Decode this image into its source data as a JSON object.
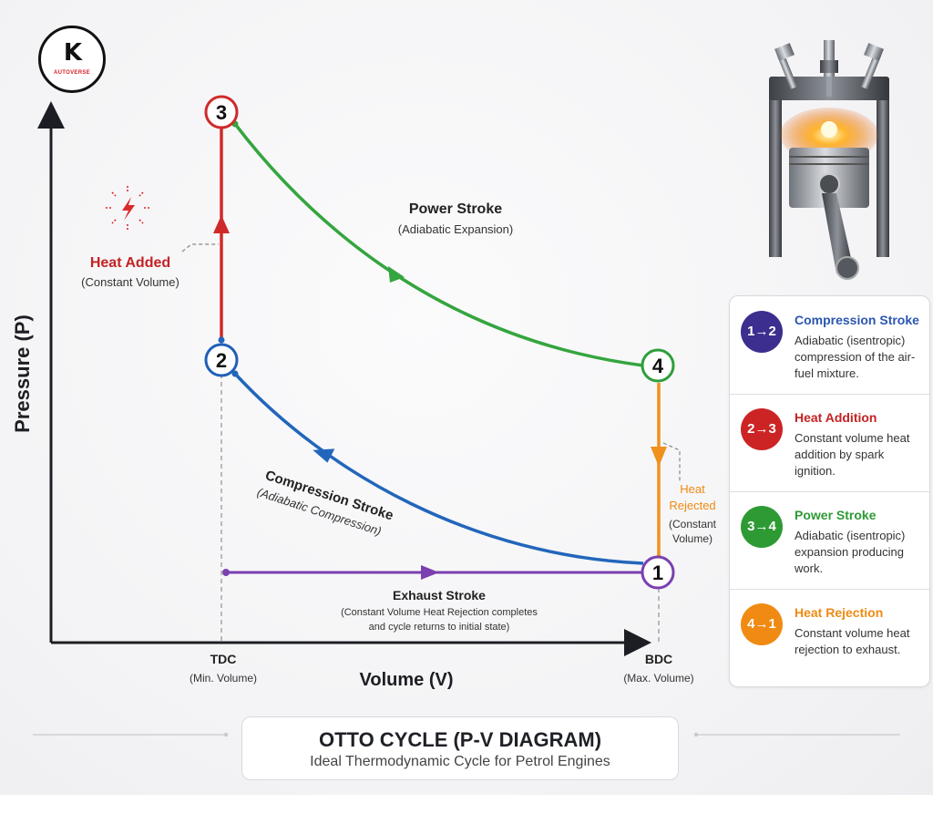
{
  "logo": {
    "mark": "K",
    "text": "AUTOVERSE"
  },
  "axes": {
    "y_label": "Pressure (P)",
    "x_label": "Volume (V)",
    "tdc_label": "TDC",
    "tdc_sub": "(Min. Volume)",
    "bdc_label": "BDC",
    "bdc_sub": "(Max. Volume)"
  },
  "points": [
    {
      "id": "p1",
      "label": "1",
      "color": "#7b3fb0"
    },
    {
      "id": "p2",
      "label": "2",
      "color": "#1f5fb8"
    },
    {
      "id": "p3",
      "label": "3",
      "color": "#cf2a2a"
    },
    {
      "id": "p4",
      "label": "4",
      "color": "#2e9e3a"
    }
  ],
  "annotations": {
    "heat_added": "Heat Added",
    "heat_added_sub": "(Constant Volume)",
    "power_stroke": "Power Stroke",
    "power_stroke_sub": "(Adiabatic Expansion)",
    "compression_stroke": "Compression Stroke",
    "compression_stroke_sub": "(Adiabatic Compression)",
    "heat_rejected_1": "Heat",
    "heat_rejected_2": "Rejected",
    "heat_rejected_3": "(Constant",
    "heat_rejected_4": "Volume)",
    "exhaust_stroke": "Exhaust Stroke",
    "exhaust_stroke_sub_1": "(Constant Volume Heat Rejection completes",
    "exhaust_stroke_sub_2": "and cycle returns to initial state)"
  },
  "colors": {
    "compression": "#2266bb",
    "heat_add": "#cf2a2a",
    "power": "#35a53f",
    "heat_reject": "#f0901e",
    "exhaust": "#7b3fb0",
    "axis": "#1c1e24"
  },
  "legend": [
    {
      "badge": "1→2",
      "title": "Compression Stroke",
      "desc": "Adiabatic (isentropic) compression of the air-fuel mixture.",
      "color": "#3b2e8f",
      "title_color": "#2a56b0"
    },
    {
      "badge": "2→3",
      "title": "Heat Addition",
      "desc": "Constant volume heat addition by spark ignition.",
      "color": "#cc2424",
      "title_color": "#c42222"
    },
    {
      "badge": "3→4",
      "title": "Power Stroke",
      "desc": "Adiabatic (isentropic) expansion producing work.",
      "color": "#2e9a34",
      "title_color": "#2e9a34"
    },
    {
      "badge": "4→1",
      "title": "Heat Rejection",
      "desc": "Constant volume heat rejection to exhaust.",
      "color": "#f08a12",
      "title_color": "#ef8a12"
    }
  ],
  "title": {
    "main": "OTTO CYCLE (P-V DIAGRAM)",
    "sub": "Ideal Thermodynamic Cycle for Petrol Engines"
  },
  "icons": [
    "spark-icon",
    "engine-piston-icon"
  ]
}
